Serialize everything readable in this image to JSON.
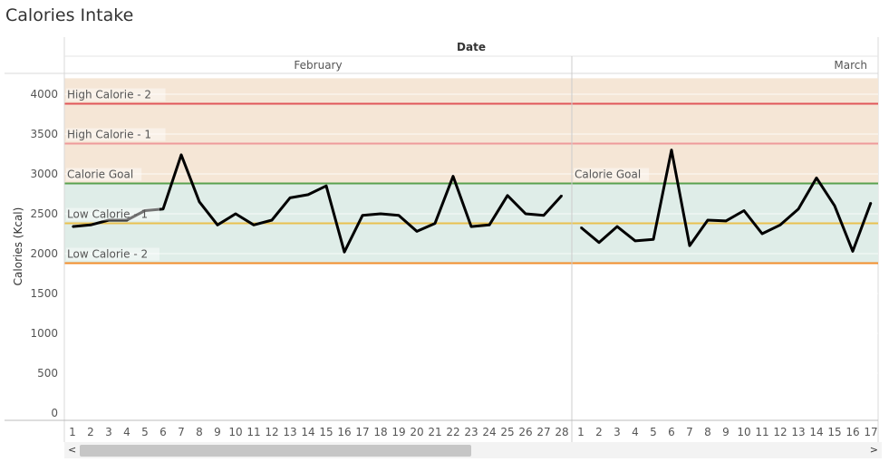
{
  "title": "Calories Intake",
  "chart_data": {
    "type": "line",
    "title": "Calories Intake",
    "column_header": "Date",
    "ylabel": "Calories (Kcal)",
    "ylim": [
      0,
      4200
    ],
    "yticks": [
      0,
      500,
      1000,
      1500,
      2000,
      2500,
      3000,
      3500,
      4000
    ],
    "panes": [
      {
        "month": "February",
        "days": [
          1,
          2,
          3,
          4,
          5,
          6,
          7,
          8,
          9,
          10,
          11,
          12,
          13,
          14,
          15,
          16,
          17,
          18,
          19,
          20,
          21,
          22,
          23,
          24,
          25,
          26,
          27,
          28
        ],
        "values": [
          2340,
          2360,
          2420,
          2420,
          2540,
          2560,
          3240,
          2650,
          2360,
          2500,
          2360,
          2420,
          2700,
          2740,
          2850,
          2020,
          2480,
          2500,
          2480,
          2280,
          2380,
          2970,
          2340,
          2360,
          2730,
          2500,
          2480,
          2730
        ],
        "reference_lines": [
          {
            "label": "High Calorie - 2",
            "value": 3880,
            "color": "#e15759"
          },
          {
            "label": "High Calorie - 1",
            "value": 3380,
            "color": "#ee9a9b"
          },
          {
            "label": "Calorie Goal",
            "value": 2880,
            "color": "#59a14f"
          },
          {
            "label": "Low Calorie - 1",
            "value": 2380,
            "color": "#e8c14f"
          },
          {
            "label": "Low Calorie - 2",
            "value": 1880,
            "color": "#f28e2b"
          }
        ]
      },
      {
        "month": "March",
        "days": [
          1,
          2,
          3,
          4,
          5,
          6,
          7,
          8,
          9,
          10,
          11,
          12,
          13,
          14,
          15,
          16,
          17
        ],
        "values": [
          2330,
          2140,
          2340,
          2160,
          2180,
          3300,
          2100,
          2420,
          2410,
          2540,
          2250,
          2360,
          2560,
          2950,
          2600,
          2030,
          2640
        ],
        "reference_lines": [
          {
            "label": "",
            "value": 3880,
            "color": "#e15759"
          },
          {
            "label": "",
            "value": 3380,
            "color": "#ee9a9b"
          },
          {
            "label": "Calorie Goal",
            "value": 2880,
            "color": "#59a14f"
          },
          {
            "label": "",
            "value": 2380,
            "color": "#e8c14f"
          },
          {
            "label": "",
            "value": 1880,
            "color": "#f28e2b"
          }
        ]
      }
    ],
    "bands": [
      {
        "from": 2880,
        "to": 4200,
        "color": "#f5e6d6"
      },
      {
        "from": 1880,
        "to": 2880,
        "color": "#dfede8"
      }
    ],
    "series_color": "#000000",
    "grid": true
  },
  "scrollbar": {
    "left_arrow": "<",
    "right_arrow": ">",
    "left_icon": "chevron-left-icon",
    "right_icon": "chevron-right-icon"
  }
}
